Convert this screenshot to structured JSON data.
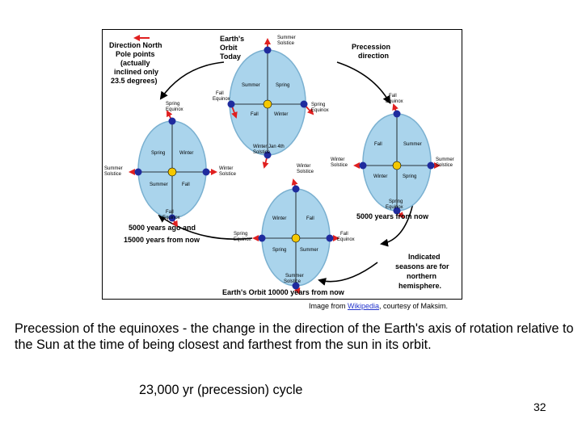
{
  "diagram": {
    "arrow_key": "Direction North Pole points (actually inclined only 23.5 degrees)",
    "arrow_key_lines": [
      "Direction North",
      "Pole points",
      "(actually",
      "inclined only",
      "23.5 degrees)"
    ],
    "orbit_today": [
      "Earth's",
      "Orbit",
      "Today"
    ],
    "precession_direction": [
      "Precession",
      "direction"
    ],
    "five_thousand_ago": [
      "5000 years ago and",
      "15000 years from now"
    ],
    "five_thousand_now": "5000 years from now",
    "indicated_seasons": [
      "Indicated",
      "seasons are for",
      "northern",
      "hemisphere."
    ],
    "orbit_10000": "Earth's Orbit 10000 years from now",
    "top_orbit": {
      "summer_solstice": [
        "Summer",
        "Solstice"
      ],
      "fall_equinox": [
        "Fall",
        "Equinox"
      ],
      "spring_equinox": [
        "Spring",
        "Equinox"
      ],
      "winter_jan": [
        "Winter  Jan 4th",
        "Solstice"
      ],
      "q_tl": "Summer",
      "q_tr": "Spring",
      "q_bl": "Fall",
      "q_br": "Winter"
    },
    "left_orbit": {
      "spring_equinox": [
        "Spring",
        "Equinox"
      ],
      "summer_solstice": [
        "Summer",
        "Solstice"
      ],
      "winter_solstice": [
        "Winter",
        "Solstice"
      ],
      "fall_equinox": [
        "Fall",
        "Equinox"
      ],
      "q_tl": "Spring",
      "q_tr": "Winter",
      "q_bl": "Summer",
      "q_br": "Fall"
    },
    "right_orbit": {
      "fall_equinox": [
        "Fall",
        "Equinox"
      ],
      "winter_solstice": [
        "Winter",
        "Solstice"
      ],
      "summer_solstice": [
        "Summer",
        "Solstice"
      ],
      "spring_equinox": [
        "Spring",
        "Equinox"
      ],
      "q_tl": "Fall",
      "q_tr": "Summer",
      "q_bl": "Winter",
      "q_br": "Spring"
    },
    "bottom_orbit": {
      "winter_solstice": [
        "Winter",
        "Solstice"
      ],
      "spring_equinox": [
        "Spring",
        "Equinox"
      ],
      "fall_equinox": [
        "Fall",
        "Equinox"
      ],
      "summer_solstice": [
        "Summer",
        "Solstice"
      ],
      "q_tl": "Winter",
      "q_tr": "Fall",
      "q_bl": "Spring",
      "q_br": "Summer"
    },
    "colors": {
      "orbit_fill": "#aad4ec",
      "orbit_stroke": "#7ab0d0",
      "earth": "#1f2b9e",
      "sun": "#f5c800",
      "pole_arrow": "#e02020",
      "curve_arrow": "#000000"
    }
  },
  "credit": {
    "prefix": "Image from ",
    "link": "Wikipedia",
    "suffix": ", courtesy of Maksim."
  },
  "caption": "Precession of the equinoxes - the change in the direction of the Earth's axis of rotation relative to the Sun at the time of being closest and farthest from the sun in its orbit.",
  "cycle": "23,000 yr (precession) cycle",
  "page_number": "32"
}
